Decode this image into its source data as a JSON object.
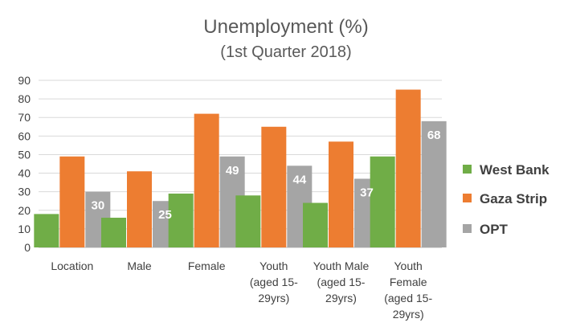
{
  "chart_data": {
    "type": "bar",
    "title": "Unemployment (%)",
    "subtitle": "(1st Quarter 2018)",
    "categories": [
      [
        "Location"
      ],
      [
        "Male"
      ],
      [
        "Female"
      ],
      [
        "Youth",
        "(aged 15-",
        "29yrs)"
      ],
      [
        "Youth Male",
        "(aged 15-",
        "29yrs)"
      ],
      [
        "Youth",
        "Female",
        "(aged 15-",
        "29yrs)"
      ]
    ],
    "series": [
      {
        "name": "West Bank",
        "color": "#70ad47",
        "values": [
          18,
          16,
          29,
          28,
          24,
          49
        ]
      },
      {
        "name": "Gaza Strip",
        "color": "#ed7d31",
        "values": [
          49,
          41,
          72,
          65,
          57,
          85
        ]
      },
      {
        "name": "OPT",
        "color": "#a5a5a5",
        "values": [
          30,
          25,
          49,
          44,
          37,
          68
        ]
      }
    ],
    "data_labels": {
      "series": "OPT",
      "values": [
        "30",
        "25",
        "49",
        "44",
        "37",
        "68"
      ]
    },
    "ylim": [
      0,
      90
    ],
    "yticks": [
      0,
      10,
      20,
      30,
      40,
      50,
      60,
      70,
      80,
      90
    ],
    "xlabel": "",
    "ylabel": "",
    "grid": true,
    "legend": "right"
  }
}
